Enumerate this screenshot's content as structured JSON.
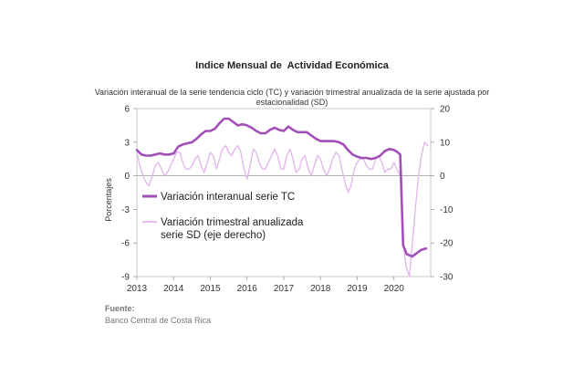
{
  "chart_data": {
    "type": "line",
    "title": "Indice Mensual de  Actividad Económica",
    "subtitle": "Variación interanual de la serie tendencia ciclo (TC) y variación trimestral anualizada de la serie ajustada por estacionalidad (SD)",
    "ylabel": "Porcentajes",
    "x_ticks": [
      "2013",
      "2014",
      "2015",
      "2016",
      "2017",
      "2018",
      "2019",
      "2020"
    ],
    "xlim": [
      2013,
      2021
    ],
    "ylim_left": [
      -9,
      6
    ],
    "yticks_left": [
      6,
      3,
      0,
      -3,
      -6,
      -9
    ],
    "ylim_right": [
      -30,
      20
    ],
    "yticks_right": [
      20,
      10,
      0,
      -10,
      -20,
      -30
    ],
    "legend_position": "middle-left",
    "series": [
      {
        "name": "Variación interanual serie TC",
        "axis": "left",
        "color": "#a24fb8",
        "x": [
          2013.0,
          2013.125,
          2013.25,
          2013.375,
          2013.5,
          2013.625,
          2013.75,
          2013.875,
          2014.0,
          2014.125,
          2014.25,
          2014.375,
          2014.5,
          2014.625,
          2014.75,
          2014.875,
          2015.0,
          2015.125,
          2015.25,
          2015.375,
          2015.5,
          2015.625,
          2015.75,
          2015.875,
          2016.0,
          2016.125,
          2016.25,
          2016.375,
          2016.5,
          2016.625,
          2016.75,
          2016.875,
          2017.0,
          2017.125,
          2017.25,
          2017.375,
          2017.5,
          2017.625,
          2017.75,
          2017.875,
          2018.0,
          2018.125,
          2018.25,
          2018.375,
          2018.5,
          2018.625,
          2018.75,
          2018.875,
          2019.0,
          2019.125,
          2019.25,
          2019.375,
          2019.5,
          2019.625,
          2019.75,
          2019.875,
          2020.0,
          2020.1,
          2020.17,
          2020.25,
          2020.35,
          2020.5,
          2020.625,
          2020.75,
          2020.875
        ],
        "values": [
          2.3,
          1.9,
          1.8,
          1.8,
          1.9,
          2.0,
          1.9,
          1.9,
          2.0,
          2.6,
          2.8,
          2.9,
          3.0,
          3.3,
          3.7,
          4.0,
          4.0,
          4.2,
          4.7,
          5.1,
          5.1,
          4.8,
          4.5,
          4.6,
          4.5,
          4.3,
          4.0,
          3.8,
          3.8,
          4.1,
          4.3,
          4.1,
          4.0,
          4.4,
          4.1,
          3.9,
          3.9,
          3.9,
          3.6,
          3.3,
          3.1,
          3.1,
          3.1,
          3.1,
          3.0,
          2.8,
          2.3,
          1.9,
          1.7,
          1.6,
          1.6,
          1.5,
          1.6,
          1.8,
          2.2,
          2.4,
          2.3,
          2.1,
          1.9,
          -6.2,
          -7.0,
          -7.2,
          -6.9,
          -6.6,
          -6.5
        ]
      },
      {
        "name": "Variación trimestral anualizada serie SD (eje derecho)",
        "axis": "right",
        "color": "#e3b8ec",
        "x": [
          2013.0,
          2013.08,
          2013.17,
          2013.25,
          2013.33,
          2013.42,
          2013.5,
          2013.58,
          2013.67,
          2013.75,
          2013.83,
          2013.92,
          2014.0,
          2014.08,
          2014.17,
          2014.25,
          2014.33,
          2014.42,
          2014.5,
          2014.58,
          2014.67,
          2014.75,
          2014.83,
          2014.92,
          2015.0,
          2015.08,
          2015.17,
          2015.25,
          2015.33,
          2015.42,
          2015.5,
          2015.58,
          2015.67,
          2015.75,
          2015.83,
          2015.92,
          2016.0,
          2016.08,
          2016.17,
          2016.25,
          2016.33,
          2016.42,
          2016.5,
          2016.58,
          2016.67,
          2016.75,
          2016.83,
          2016.92,
          2017.0,
          2017.08,
          2017.17,
          2017.25,
          2017.33,
          2017.42,
          2017.5,
          2017.58,
          2017.67,
          2017.75,
          2017.83,
          2017.92,
          2018.0,
          2018.08,
          2018.17,
          2018.25,
          2018.33,
          2018.42,
          2018.5,
          2018.58,
          2018.67,
          2018.75,
          2018.83,
          2018.92,
          2019.0,
          2019.08,
          2019.17,
          2019.25,
          2019.33,
          2019.42,
          2019.5,
          2019.58,
          2019.67,
          2019.75,
          2019.83,
          2019.92,
          2020.0,
          2020.08,
          2020.17,
          2020.25,
          2020.33,
          2020.42,
          2020.5,
          2020.58,
          2020.67,
          2020.75,
          2020.83,
          2020.92
        ],
        "values": [
          7,
          3,
          0,
          -2,
          -3,
          0,
          3,
          4,
          2,
          0,
          1,
          3,
          5,
          7,
          7,
          4,
          2,
          2,
          3,
          5,
          6,
          3,
          1,
          4,
          7,
          6,
          2,
          5,
          8,
          9,
          7,
          6,
          8,
          9,
          7,
          2,
          -1,
          3,
          8,
          7,
          4,
          2,
          2,
          4,
          6,
          8,
          6,
          2,
          2,
          6,
          8,
          5,
          1,
          2,
          5,
          6,
          2,
          0,
          3,
          6,
          5,
          2,
          0,
          2,
          5,
          7,
          6,
          2,
          -2,
          -5,
          -3,
          2,
          4,
          5,
          5,
          3,
          2,
          2,
          5,
          6,
          4,
          1,
          2,
          2,
          4,
          2,
          0,
          -20,
          -27,
          -30,
          -20,
          -10,
          0,
          6,
          10,
          9
        ]
      }
    ]
  },
  "source": {
    "label": "Fuente:",
    "text": "Banco Central de Costa Rica"
  }
}
